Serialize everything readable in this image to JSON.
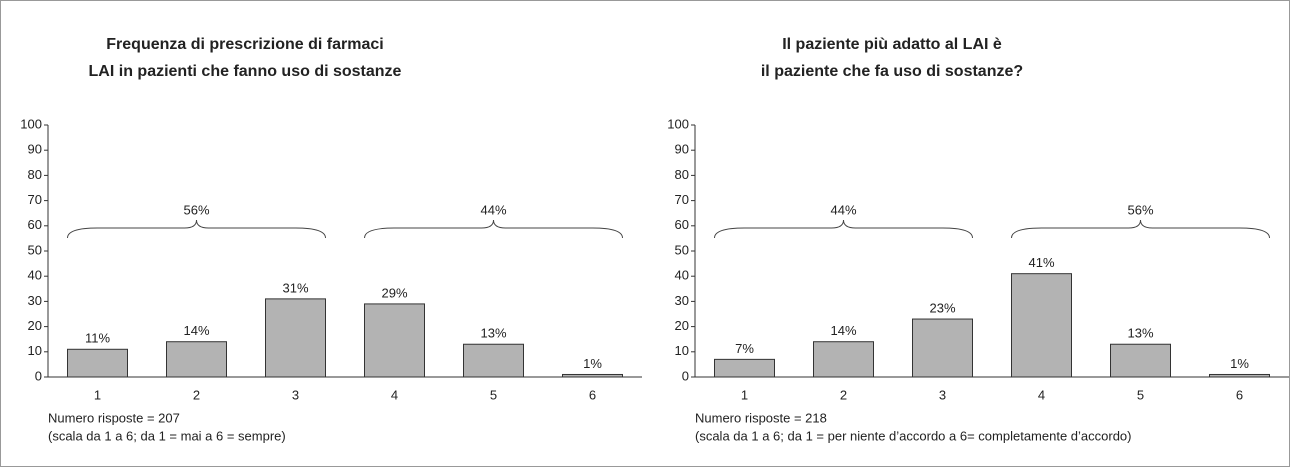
{
  "chart_data": [
    {
      "type": "bar",
      "title": [
        "Frequenza di prescrizione di farmaci",
        "LAI in pazienti che fanno uso di sostanze"
      ],
      "categories": [
        "1",
        "2",
        "3",
        "4",
        "5",
        "6"
      ],
      "values": [
        11,
        14,
        31,
        29,
        13,
        1
      ],
      "value_labels": [
        "11%",
        "14%",
        "31%",
        "29%",
        "13%",
        "1%"
      ],
      "color": "#b3b3b3",
      "ylim": [
        0,
        100
      ],
      "yticks": [
        0,
        10,
        20,
        30,
        40,
        50,
        60,
        70,
        80,
        90,
        100
      ],
      "groups": [
        {
          "value": 56,
          "label": "56%",
          "categories": [
            "1",
            "2",
            "3"
          ]
        },
        {
          "value": 44,
          "label": "44%",
          "categories": [
            "4",
            "5",
            "6"
          ]
        }
      ],
      "notes": [
        "Numero risposte = 207",
        "(scala da 1 a 6; da 1 = mai a 6 = sempre)"
      ]
    },
    {
      "type": "bar",
      "title": [
        "Il paziente più adatto al LAI  è",
        "il paziente che fa uso di sostanze?"
      ],
      "categories": [
        "1",
        "2",
        "3",
        "4",
        "5",
        "6"
      ],
      "values": [
        7,
        14,
        23,
        41,
        13,
        1
      ],
      "value_labels": [
        "7%",
        "14%",
        "23%",
        "41%",
        "13%",
        "1%"
      ],
      "color": "#b3b3b3",
      "ylim": [
        0,
        100
      ],
      "yticks": [
        0,
        10,
        20,
        30,
        40,
        50,
        60,
        70,
        80,
        90,
        100
      ],
      "groups": [
        {
          "value": 44,
          "label": "44%",
          "categories": [
            "1",
            "2",
            "3"
          ]
        },
        {
          "value": 56,
          "label": "56%",
          "categories": [
            "4",
            "5",
            "6"
          ]
        }
      ],
      "notes": [
        "Numero risposte = 218",
        "(scala da 1 a 6; da 1 = per niente d’accordo a 6= completamente d’accordo)"
      ]
    }
  ]
}
